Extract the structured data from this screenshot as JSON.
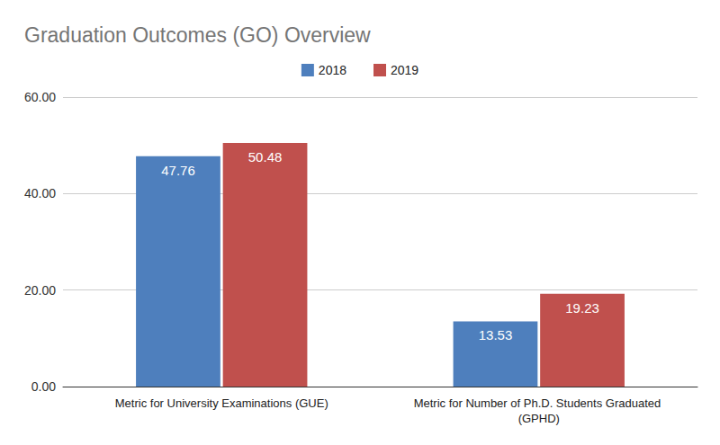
{
  "chart_data": {
    "type": "bar",
    "title": "Graduation Outcomes (GO) Overview",
    "categories": [
      "Metric for University Examinations (GUE)",
      "Metric for Number of Ph.D. Students Graduated (GPHD)"
    ],
    "series": [
      {
        "name": "2018",
        "color": "#4e7fbd",
        "values": [
          47.76,
          13.53
        ]
      },
      {
        "name": "2019",
        "color": "#c0504d",
        "values": [
          50.48,
          19.23
        ]
      }
    ],
    "ylim": [
      0,
      60
    ],
    "yticks": [
      {
        "value": 0,
        "label": "0.00"
      },
      {
        "value": 20,
        "label": "20.00"
      },
      {
        "value": 40,
        "label": "40.00"
      },
      {
        "value": 60,
        "label": "60.00"
      }
    ],
    "grid": true,
    "legend": "top",
    "data_labels": true
  }
}
